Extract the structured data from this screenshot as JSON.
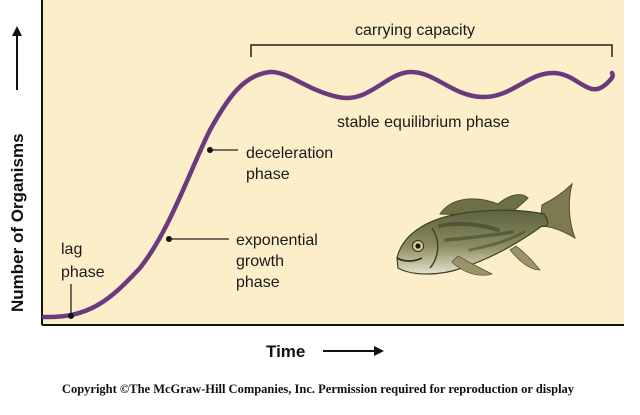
{
  "colors": {
    "plot_background": "#fbeec8",
    "curve": "#6b3a7c",
    "axes": "#111111",
    "leader_lines": "#222222"
  },
  "axes": {
    "ylabel": "Number of Organisms",
    "xlabel": "Time"
  },
  "labels": {
    "carrying_capacity": "carrying capacity",
    "stable_equilibrium": "stable equilibrium phase",
    "deceleration": [
      "deceleration",
      "phase"
    ],
    "exponential": [
      "exponential",
      "growth",
      "phase"
    ],
    "lag": [
      "lag",
      "phase"
    ]
  },
  "illustration": {
    "icon": "largemouth-bass-fish-icon"
  },
  "copyright": "Copyright ©The McGraw-Hill Companies, Inc. Permission required for reproduction or display"
}
